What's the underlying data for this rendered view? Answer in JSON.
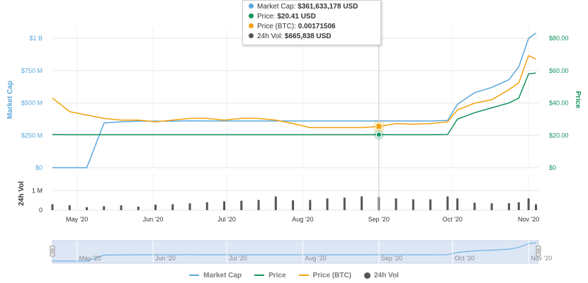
{
  "chart_data": {
    "type": "line",
    "x": [
      "2020-04-21",
      "2020-04-28",
      "2020-05-05",
      "2020-05-12",
      "2020-05-19",
      "2020-05-26",
      "2020-06-02",
      "2020-06-09",
      "2020-06-16",
      "2020-06-23",
      "2020-06-30",
      "2020-07-07",
      "2020-07-14",
      "2020-07-21",
      "2020-07-28",
      "2020-08-04",
      "2020-08-11",
      "2020-08-18",
      "2020-08-25",
      "2020-09-01",
      "2020-09-08",
      "2020-09-15",
      "2020-09-22",
      "2020-09-29",
      "2020-10-03",
      "2020-10-10",
      "2020-10-17",
      "2020-10-24",
      "2020-10-28",
      "2020-11-01",
      "2020-11-04"
    ],
    "series": [
      {
        "name": "Market Cap",
        "axis": "left",
        "color": "#5aa7dc",
        "values": [
          0,
          0,
          0,
          345000000,
          355000000,
          360000000,
          360000000,
          360000000,
          362000000,
          361000000,
          361000000,
          361000000,
          361000000,
          361000000,
          361000000,
          361000000,
          361000000,
          361000000,
          361000000,
          361633178,
          361000000,
          361000000,
          361000000,
          365000000,
          490000000,
          580000000,
          620000000,
          680000000,
          780000000,
          1000000000,
          1040000000
        ]
      },
      {
        "name": "Price",
        "axis": "right",
        "color": "#14935c",
        "values": [
          20.5,
          20.4,
          20.4,
          20.4,
          20.4,
          20.4,
          20.4,
          20.4,
          20.4,
          20.4,
          20.4,
          20.4,
          20.4,
          20.4,
          20.4,
          20.4,
          20.4,
          20.4,
          20.4,
          20.41,
          20.4,
          20.4,
          20.4,
          20.5,
          30,
          34,
          37,
          40,
          43,
          58,
          58.5
        ]
      },
      {
        "name": "Price (BTC)",
        "axis": "btc",
        "color": "#f2a20d",
        "values": [
          0.00255,
          0.00215,
          0.00205,
          0.00195,
          0.0019,
          0.0019,
          0.00185,
          0.0019,
          0.00195,
          0.00195,
          0.0019,
          0.00195,
          0.00195,
          0.0019,
          0.0018,
          0.00168,
          0.00168,
          0.00168,
          0.00168,
          0.00171506,
          0.0018,
          0.00178,
          0.0018,
          0.00185,
          0.0022,
          0.0024,
          0.0025,
          0.0028,
          0.003,
          0.0038,
          0.0037
        ]
      }
    ],
    "volume": {
      "name": "24h Vol",
      "color": "#555555",
      "values": [
        300000,
        250000,
        150000,
        200000,
        240000,
        180000,
        280000,
        300000,
        350000,
        400000,
        450000,
        480000,
        520000,
        700000,
        500000,
        520000,
        600000,
        640000,
        700000,
        665838,
        600000,
        550000,
        550000,
        700000,
        600000,
        380000,
        350000,
        350000,
        400000,
        600000,
        300000
      ]
    },
    "y_left": {
      "title": "Market Cap",
      "ticks": [
        "$0",
        "$250 M",
        "$500 M",
        "$750 M",
        "$1 B"
      ],
      "tick_values": [
        0,
        250000000,
        500000000,
        750000000,
        1000000000
      ],
      "range": [
        0,
        1050000000
      ]
    },
    "y_right": {
      "title": "Price",
      "ticks": [
        "$0",
        "$20.00",
        "$40.00",
        "$60.00",
        "$80.00"
      ],
      "tick_values": [
        0,
        20,
        40,
        60,
        80
      ],
      "range": [
        0,
        84
      ]
    },
    "y_btc_range": [
      0.0005,
      0.0045
    ],
    "y_vol": {
      "title": "24h Vol",
      "ticks": [
        "0",
        "1 M"
      ],
      "tick_values": [
        0,
        1000000
      ],
      "range": [
        0,
        1700000
      ]
    },
    "x_ticks": [
      {
        "label": "May '20",
        "date": "2020-05-01"
      },
      {
        "label": "Jun '20",
        "date": "2020-06-01"
      },
      {
        "label": "Jul '20",
        "date": "2020-07-01"
      },
      {
        "label": "Aug '20",
        "date": "2020-08-01"
      },
      {
        "label": "Sep '20",
        "date": "2020-09-01"
      },
      {
        "label": "Oct '20",
        "date": "2020-10-01"
      },
      {
        "label": "Nov '20",
        "date": "2020-11-01"
      }
    ],
    "x_range": [
      "2020-04-21",
      "2020-11-05"
    ],
    "highlight_date": "2020-09-01",
    "navigator_labels": [
      "May '20",
      "Jun '20",
      "Jul '20",
      "Aug '20",
      "Sep '20",
      "Oct '20",
      "Nov '20"
    ],
    "grid": true,
    "legend_placement": "bottom"
  },
  "tooltip": {
    "rows": [
      {
        "label": "Market Cap: ",
        "value": "$361,633,178 USD",
        "color": "#5aa7dc"
      },
      {
        "label": "Price: ",
        "value": "$20.41 USD",
        "color": "#14935c"
      },
      {
        "label": "Price (BTC): ",
        "value": "0.00171506",
        "color": "#f2a20d"
      },
      {
        "label": "24h Vol: ",
        "value": "$665,838 USD",
        "color": "#555555"
      }
    ]
  },
  "legend": {
    "items": [
      {
        "label": "Market Cap",
        "color": "#5aa7dc",
        "shape": "line"
      },
      {
        "label": "Price",
        "color": "#14935c",
        "shape": "line"
      },
      {
        "label": "Price (BTC)",
        "color": "#f2a20d",
        "shape": "line"
      },
      {
        "label": "24h Vol",
        "color": "#555555",
        "shape": "dot"
      }
    ]
  }
}
